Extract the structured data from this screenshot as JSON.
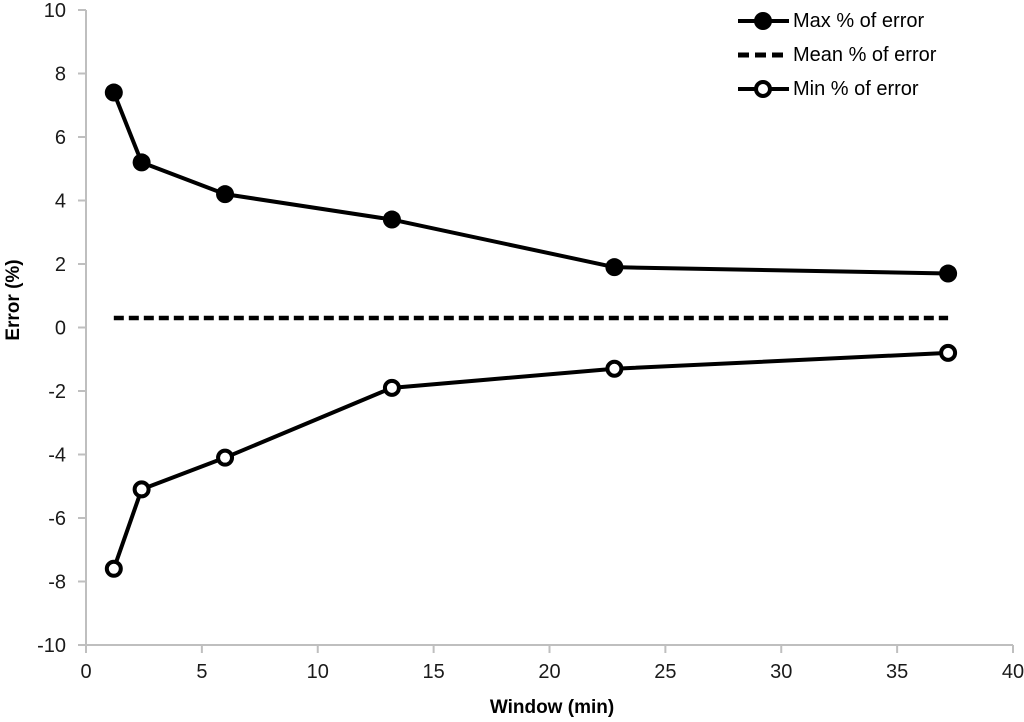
{
  "chart_data": {
    "type": "line",
    "title": "",
    "xlabel": "Window (min)",
    "ylabel": "Error (%)",
    "xlim": [
      0,
      40
    ],
    "ylim": [
      -10,
      10
    ],
    "xticks": [
      0,
      5,
      10,
      15,
      20,
      25,
      30,
      35,
      40
    ],
    "yticks": [
      -10,
      -8,
      -6,
      -4,
      -2,
      0,
      2,
      4,
      6,
      8,
      10
    ],
    "grid": false,
    "legend_position": "top-right",
    "x": [
      1.2,
      2.4,
      6,
      13.2,
      22.8,
      37.2
    ],
    "series": [
      {
        "name": "Max % of error",
        "values": [
          7.4,
          5.2,
          4.2,
          3.4,
          1.9,
          1.7
        ],
        "line": "solid",
        "marker": "filled-circle",
        "color": "#000000"
      },
      {
        "name": "Mean % of error",
        "values": [
          0.3,
          0.3,
          0.3,
          0.3,
          0.3,
          0.3
        ],
        "line": "dashed",
        "marker": "none",
        "color": "#000000"
      },
      {
        "name": "Min % of error",
        "values": [
          -7.6,
          -5.1,
          -4.1,
          -1.9,
          -1.3,
          -0.8
        ],
        "line": "solid",
        "marker": "open-circle",
        "color": "#000000"
      }
    ],
    "colors": {
      "series": "#000000",
      "axis": "#bfbfbf",
      "tick_text": "#1a1a1a",
      "background": "#ffffff"
    }
  }
}
